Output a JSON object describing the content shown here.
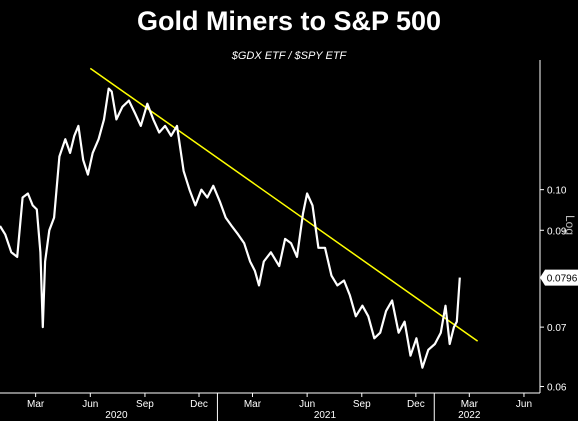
{
  "chart_data": {
    "type": "line",
    "title": "Gold Miners to S&P 500",
    "subtitle": "$GDX ETF / $SPY ETF",
    "y_axis_label": "Log",
    "y_scale": "log",
    "ylim": [
      0.059,
      0.14
    ],
    "y_ticks": [
      {
        "value": 0.06,
        "label": "0.06"
      },
      {
        "value": 0.07,
        "label": "0.07"
      },
      {
        "value": 0.09,
        "label": "0.09"
      },
      {
        "value": 0.1,
        "label": "0.10"
      }
    ],
    "x_month_ticks": [
      {
        "date": "2020-03-01",
        "label": "Mar"
      },
      {
        "date": "2020-06-01",
        "label": "Jun"
      },
      {
        "date": "2020-09-01",
        "label": "Sep"
      },
      {
        "date": "2020-12-01",
        "label": "Dec"
      },
      {
        "date": "2021-03-01",
        "label": "Mar"
      },
      {
        "date": "2021-06-01",
        "label": "Jun"
      },
      {
        "date": "2021-09-01",
        "label": "Sep"
      },
      {
        "date": "2021-12-01",
        "label": "Dec"
      },
      {
        "date": "2022-03-01",
        "label": "Mar"
      },
      {
        "date": "2022-06-01",
        "label": "Jun"
      }
    ],
    "x_year_labels": [
      {
        "date": "2020-07-15",
        "label": "2020"
      },
      {
        "date": "2021-07-01",
        "label": "2021"
      },
      {
        "date": "2022-03-01",
        "label": "2022"
      }
    ],
    "year_dividers": [
      "2021-01-01",
      "2022-01-01"
    ],
    "series": [
      {
        "color": "#ffffff",
        "points": [
          [
            "2020-01-01",
            0.091
          ],
          [
            "2020-01-10",
            0.089
          ],
          [
            "2020-01-20",
            0.085
          ],
          [
            "2020-01-30",
            0.084
          ],
          [
            "2020-02-08",
            0.098
          ],
          [
            "2020-02-17",
            0.099
          ],
          [
            "2020-02-25",
            0.096
          ],
          [
            "2020-03-03",
            0.095
          ],
          [
            "2020-03-09",
            0.085
          ],
          [
            "2020-03-13",
            0.07
          ],
          [
            "2020-03-17",
            0.083
          ],
          [
            "2020-03-24",
            0.09
          ],
          [
            "2020-04-01",
            0.093
          ],
          [
            "2020-04-10",
            0.109
          ],
          [
            "2020-04-20",
            0.114
          ],
          [
            "2020-04-28",
            0.11
          ],
          [
            "2020-05-05",
            0.115
          ],
          [
            "2020-05-12",
            0.118
          ],
          [
            "2020-05-20",
            0.108
          ],
          [
            "2020-05-28",
            0.104
          ],
          [
            "2020-06-05",
            0.11
          ],
          [
            "2020-06-15",
            0.114
          ],
          [
            "2020-06-24",
            0.12
          ],
          [
            "2020-07-02",
            0.13
          ],
          [
            "2020-07-07",
            0.129
          ],
          [
            "2020-07-15",
            0.12
          ],
          [
            "2020-07-25",
            0.124
          ],
          [
            "2020-08-05",
            0.126
          ],
          [
            "2020-08-15",
            0.122
          ],
          [
            "2020-08-25",
            0.118
          ],
          [
            "2020-09-05",
            0.125
          ],
          [
            "2020-09-15",
            0.12
          ],
          [
            "2020-09-25",
            0.116
          ],
          [
            "2020-10-05",
            0.118
          ],
          [
            "2020-10-15",
            0.115
          ],
          [
            "2020-10-25",
            0.118
          ],
          [
            "2020-11-05",
            0.105
          ],
          [
            "2020-11-15",
            0.1
          ],
          [
            "2020-11-25",
            0.096
          ],
          [
            "2020-12-05",
            0.1
          ],
          [
            "2020-12-15",
            0.098
          ],
          [
            "2020-12-25",
            0.101
          ],
          [
            "2021-01-05",
            0.097
          ],
          [
            "2021-01-15",
            0.093
          ],
          [
            "2021-01-25",
            0.091
          ],
          [
            "2021-02-05",
            0.089
          ],
          [
            "2021-02-15",
            0.087
          ],
          [
            "2021-02-25",
            0.083
          ],
          [
            "2021-03-05",
            0.081
          ],
          [
            "2021-03-12",
            0.078
          ],
          [
            "2021-03-20",
            0.083
          ],
          [
            "2021-04-01",
            0.085
          ],
          [
            "2021-04-15",
            0.082
          ],
          [
            "2021-04-25",
            0.088
          ],
          [
            "2021-05-05",
            0.087
          ],
          [
            "2021-05-15",
            0.084
          ],
          [
            "2021-05-25",
            0.094
          ],
          [
            "2021-06-01",
            0.099
          ],
          [
            "2021-06-10",
            0.096
          ],
          [
            "2021-06-20",
            0.086
          ],
          [
            "2021-07-01",
            0.086
          ],
          [
            "2021-07-12",
            0.08
          ],
          [
            "2021-07-22",
            0.078
          ],
          [
            "2021-08-02",
            0.079
          ],
          [
            "2021-08-12",
            0.076
          ],
          [
            "2021-08-22",
            0.072
          ],
          [
            "2021-09-02",
            0.074
          ],
          [
            "2021-09-12",
            0.072
          ],
          [
            "2021-09-22",
            0.068
          ],
          [
            "2021-10-02",
            0.069
          ],
          [
            "2021-10-12",
            0.073
          ],
          [
            "2021-10-22",
            0.075
          ],
          [
            "2021-11-02",
            0.069
          ],
          [
            "2021-11-12",
            0.071
          ],
          [
            "2021-11-22",
            0.065
          ],
          [
            "2021-12-02",
            0.068
          ],
          [
            "2021-12-12",
            0.063
          ],
          [
            "2021-12-22",
            0.066
          ],
          [
            "2022-01-02",
            0.067
          ],
          [
            "2022-01-12",
            0.069
          ],
          [
            "2022-01-20",
            0.074
          ],
          [
            "2022-01-27",
            0.067
          ],
          [
            "2022-02-03",
            0.07
          ],
          [
            "2022-02-08",
            0.071
          ],
          [
            "2022-02-13",
            0.0796
          ]
        ]
      }
    ],
    "trendline": {
      "color": "#ffff00",
      "start": [
        "2020-06-01",
        0.137
      ],
      "end": [
        "2022-03-15",
        0.0675
      ]
    },
    "last_value": {
      "value": 0.0796,
      "label": "0.0796"
    },
    "colors": {
      "background": "#000000",
      "axis": "#ffffff",
      "line": "#ffffff",
      "trend": "#ffff00"
    },
    "grid": false
  }
}
